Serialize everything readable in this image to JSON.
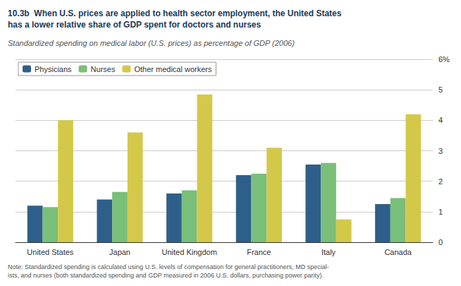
{
  "chart_data": {
    "type": "bar",
    "title": "10.3b  When U.S. prices are applied to health sector employment, the United States\nhas a lower relative share of GDP spent for doctors and nurses",
    "subtitle": "Standardized spending on medical labor (U.S. prices) as percentage of GDP (2006)",
    "annotations": [
      "Note: Standardized spending is calculated using U.S. levels of compensation for general practitioners, MD special-\nists, and nurses (both standardized spending and GDP measured in 2006 U.S. dollars, purchasing power parity)."
    ],
    "categories": [
      "United States",
      "Japan",
      "United Kingdom",
      "France",
      "Italy",
      "Canada"
    ],
    "series": [
      {
        "name": "Physicians",
        "color": "#2e5f8a",
        "values": [
          1.2,
          1.4,
          1.6,
          2.2,
          2.55,
          1.25
        ]
      },
      {
        "name": "Nurses",
        "color": "#7abf7a",
        "values": [
          1.15,
          1.65,
          1.7,
          2.25,
          2.6,
          1.45
        ]
      },
      {
        "name": "Other medical workers",
        "color": "#d4c84a",
        "values": [
          4.0,
          3.6,
          4.85,
          3.1,
          0.75,
          4.2
        ]
      }
    ],
    "ylim": [
      0,
      6
    ],
    "yticks": [
      0,
      1,
      2,
      3,
      4,
      5,
      {
        "value": 6,
        "label": "6%"
      }
    ],
    "grid": true,
    "legend": "upper left"
  }
}
